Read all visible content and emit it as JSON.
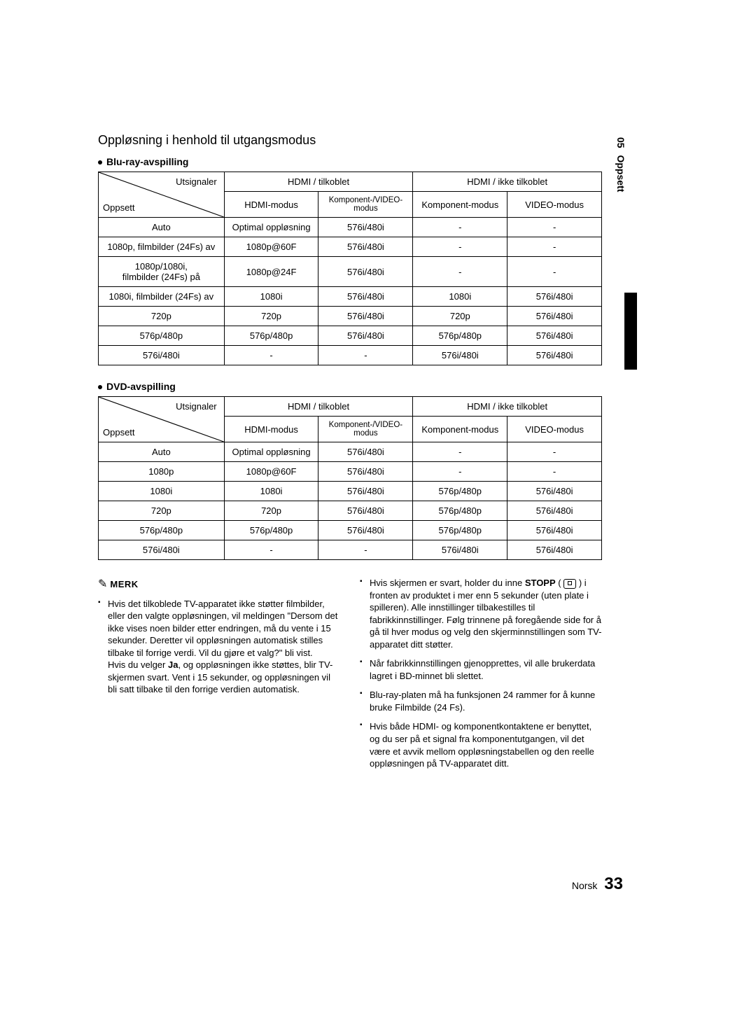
{
  "side_tab": {
    "chapter_num": "05",
    "chapter_title": "Oppsett"
  },
  "section_title": "Oppløsning i henhold til utgangsmodus",
  "table_header": {
    "diag_top": "Utsignaler",
    "diag_bottom": "Oppsett",
    "group1": "HDMI / tilkoblet",
    "group2": "HDMI / ikke tilkoblet",
    "col_hdmi": "HDMI-modus",
    "col_kompvideo": "Komponent-/VIDEO-modus",
    "col_komp": "Komponent-modus",
    "col_video": "VIDEO-modus"
  },
  "bluray": {
    "title": "Blu-ray-avspilling",
    "rows": [
      [
        "Auto",
        "Optimal oppløsning",
        "576i/480i",
        "-",
        "-"
      ],
      [
        "1080p, filmbilder (24Fs) av",
        "1080p@60F",
        "576i/480i",
        "-",
        "-"
      ],
      [
        "1080p/1080i,\nfilmbilder (24Fs) på",
        "1080p@24F",
        "576i/480i",
        "-",
        "-"
      ],
      [
        "1080i, filmbilder (24Fs) av",
        "1080i",
        "576i/480i",
        "1080i",
        "576i/480i"
      ],
      [
        "720p",
        "720p",
        "576i/480i",
        "720p",
        "576i/480i"
      ],
      [
        "576p/480p",
        "576p/480p",
        "576i/480i",
        "576p/480p",
        "576i/480i"
      ],
      [
        "576i/480i",
        "-",
        "-",
        "576i/480i",
        "576i/480i"
      ]
    ]
  },
  "dvd": {
    "title": "DVD-avspilling",
    "rows": [
      [
        "Auto",
        "Optimal oppløsning",
        "576i/480i",
        "-",
        "-"
      ],
      [
        "1080p",
        "1080p@60F",
        "576i/480i",
        "-",
        "-"
      ],
      [
        "1080i",
        "1080i",
        "576i/480i",
        "576p/480p",
        "576i/480i"
      ],
      [
        "720p",
        "720p",
        "576i/480i",
        "576p/480p",
        "576i/480i"
      ],
      [
        "576p/480p",
        "576p/480p",
        "576i/480i",
        "576p/480p",
        "576i/480i"
      ],
      [
        "576i/480i",
        "-",
        "-",
        "576i/480i",
        "576i/480i"
      ]
    ]
  },
  "notes": {
    "head": "MERK",
    "left": {
      "p1a": "Hvis det tilkoblede TV-apparatet ikke støtter filmbilder, eller den valgte oppløsningen, vil meldingen \"Dersom det ikke vises noen bilder etter endringen, må du vente i 15 sekunder. Deretter vil oppløsningen automatisk stilles tilbake til forrige verdi. Vil du gjøre et valg?\" bli vist.",
      "p1b_pre": "Hvis du velger ",
      "p1b_bold": "Ja",
      "p1b_post": ", og oppløsningen ikke støttes, blir TV-skjermen svart. Vent i 15 sekunder, og oppløsningen vil bli satt tilbake til den forrige verdien automatisk."
    },
    "right": {
      "p1_pre": "Hvis skjermen er svart, holder du inne ",
      "p1_bold": "STOPP",
      "p1_post": " i fronten av produktet i mer enn 5 sekunder (uten plate i spilleren). Alle innstillinger tilbakestilles til fabrikkinnstillinger. Følg trinnene på foregående side for å gå til hver modus og velg den skjerminnstillingen som TV-apparatet ditt støtter.",
      "p2": "Når fabrikkinnstillingen gjenopprettes, vil alle brukerdata lagret i BD-minnet bli slettet.",
      "p3": "Blu-ray-platen må ha funksjonen 24 rammer for å kunne bruke Filmbilde (24 Fs).",
      "p4": "Hvis både HDMI- og komponentkontaktene er benyttet, og du ser på et signal fra komponentutgangen, vil det være et avvik mellom oppløsningstabellen og den reelle oppløsningen på TV-apparatet ditt."
    }
  },
  "footer": {
    "lang": "Norsk",
    "page": "33"
  }
}
